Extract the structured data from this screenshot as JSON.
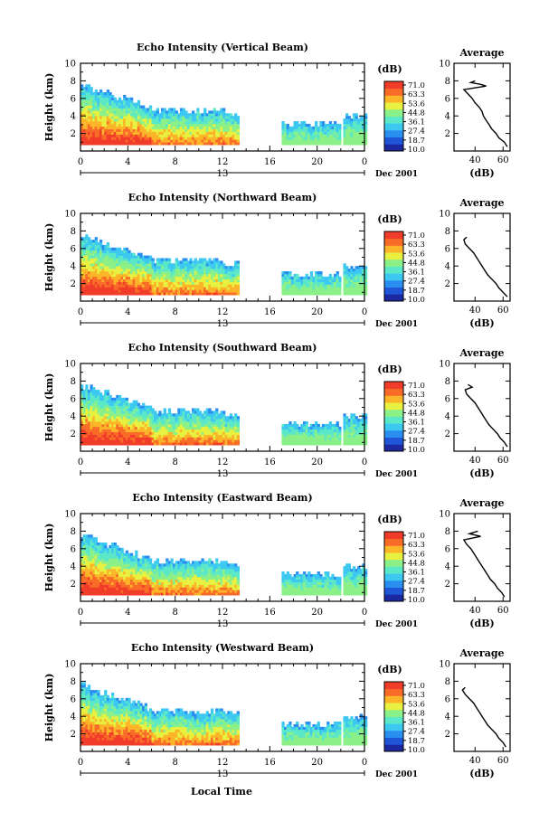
{
  "figure": {
    "bottom_label": "Local Time",
    "date_label": "Dec 2001",
    "day_marker": "13"
  },
  "colorbar": {
    "unit": "(dB)",
    "labels": [
      "71.0",
      "63.3",
      "53.6",
      "44.8",
      "36.1",
      "27.4",
      "18.7",
      "10.0"
    ],
    "colors": [
      "#1c28a0",
      "#1f56d8",
      "#2a8ef0",
      "#3cc8f0",
      "#5ae8c8",
      "#8cf088",
      "#e8f040",
      "#fcb428",
      "#f86c28",
      "#f03c28"
    ]
  },
  "chart_data": [
    {
      "type": "heatmap",
      "title": "Echo Intensity (Vertical Beam)",
      "xlabel": "",
      "ylabel": "Height (km)",
      "xlim": [
        0,
        24
      ],
      "ylim": [
        0,
        10
      ],
      "xticks": [
        "0",
        "4",
        "8",
        "12",
        "16",
        "20",
        "0"
      ],
      "yticks": [
        "2",
        "4",
        "6",
        "8",
        "10"
      ],
      "zlim": [
        10.0,
        71.0
      ],
      "profile": {
        "title": "Average",
        "xlabel": "(dB)",
        "xticks": [
          "40",
          "60"
        ],
        "yticks": [
          "2",
          "4",
          "6",
          "8",
          "10"
        ],
        "xlim": [
          25,
          65
        ],
        "ylim": [
          0,
          10
        ],
        "height_km": [
          0.5,
          1.0,
          1.5,
          2.0,
          2.5,
          3.0,
          3.5,
          4.0,
          4.5,
          5.0,
          5.5,
          6.0,
          6.5,
          7.0,
          7.4,
          7.6,
          7.8,
          8.0
        ],
        "value_db": [
          63,
          61,
          57,
          55,
          52,
          50,
          48,
          46,
          45,
          43,
          40,
          38,
          35,
          32,
          48,
          44,
          37,
          40
        ]
      }
    },
    {
      "type": "heatmap",
      "title": "Echo Intensity (Northward Beam)",
      "xlabel": "",
      "ylabel": "Height (km)",
      "xlim": [
        0,
        24
      ],
      "ylim": [
        0,
        10
      ],
      "xticks": [
        "0",
        "4",
        "8",
        "12",
        "16",
        "20",
        "0"
      ],
      "yticks": [
        "2",
        "4",
        "6",
        "8",
        "10"
      ],
      "zlim": [
        10.0,
        71.0
      ],
      "profile": {
        "title": "Average",
        "xlabel": "(dB)",
        "xticks": [
          "40",
          "60"
        ],
        "yticks": [
          "2",
          "4",
          "6",
          "8",
          "10"
        ],
        "xlim": [
          25,
          65
        ],
        "ylim": [
          0,
          10
        ],
        "height_km": [
          0.5,
          1.0,
          1.5,
          2.0,
          2.5,
          3.0,
          3.5,
          4.0,
          4.5,
          5.0,
          5.5,
          6.0,
          6.5,
          7.0,
          7.3
        ],
        "value_db": [
          63,
          60,
          57,
          55,
          52,
          49,
          47,
          45,
          43,
          41,
          39,
          36,
          33,
          32,
          34
        ]
      }
    },
    {
      "type": "heatmap",
      "title": "Echo Intensity (Southward Beam)",
      "xlabel": "",
      "ylabel": "Height (km)",
      "xlim": [
        0,
        24
      ],
      "ylim": [
        0,
        10
      ],
      "xticks": [
        "0",
        "4",
        "8",
        "12",
        "16",
        "20",
        "0"
      ],
      "yticks": [
        "2",
        "4",
        "6",
        "8",
        "10"
      ],
      "zlim": [
        10.0,
        71.0
      ],
      "profile": {
        "title": "Average",
        "xlabel": "(dB)",
        "xticks": [
          "40",
          "60"
        ],
        "yticks": [
          "2",
          "4",
          "6",
          "8",
          "10"
        ],
        "xlim": [
          25,
          65
        ],
        "ylim": [
          0,
          10
        ],
        "height_km": [
          0.5,
          1.0,
          1.5,
          2.0,
          2.5,
          3.0,
          3.5,
          4.0,
          4.5,
          5.0,
          5.5,
          6.0,
          6.5,
          7.0,
          7.3,
          7.6
        ],
        "value_db": [
          63,
          61,
          58,
          56,
          53,
          50,
          48,
          46,
          44,
          42,
          40,
          37,
          34,
          33,
          38,
          35
        ]
      }
    },
    {
      "type": "heatmap",
      "title": "Echo Intensity (Eastward Beam)",
      "xlabel": "",
      "ylabel": "Height (km)",
      "xlim": [
        0,
        24
      ],
      "ylim": [
        0,
        10
      ],
      "xticks": [
        "0",
        "4",
        "8",
        "12",
        "16",
        "20",
        "0"
      ],
      "yticks": [
        "2",
        "4",
        "6",
        "8",
        "10"
      ],
      "zlim": [
        10.0,
        71.0
      ],
      "profile": {
        "title": "Average",
        "xlabel": "(dB)",
        "xticks": [
          "40",
          "60"
        ],
        "yticks": [
          "2",
          "4",
          "6",
          "8",
          "10"
        ],
        "xlim": [
          25,
          65
        ],
        "ylim": [
          0,
          10
        ],
        "height_km": [
          0.5,
          1.0,
          1.5,
          2.0,
          2.5,
          3.0,
          3.5,
          4.0,
          4.5,
          5.0,
          5.5,
          6.0,
          6.5,
          7.0,
          7.4,
          7.7,
          8.0
        ],
        "value_db": [
          61,
          59,
          56,
          54,
          51,
          49,
          47,
          45,
          43,
          41,
          39,
          37,
          34,
          32,
          44,
          36,
          42
        ]
      }
    },
    {
      "type": "heatmap",
      "title": "Echo Intensity (Westward Beam)",
      "xlabel": "",
      "ylabel": "Height (km)",
      "xlim": [
        0,
        24
      ],
      "ylim": [
        0,
        10
      ],
      "xticks": [
        "0",
        "4",
        "8",
        "12",
        "16",
        "20",
        "0"
      ],
      "yticks": [
        "2",
        "4",
        "6",
        "8",
        "10"
      ],
      "zlim": [
        10.0,
        71.0
      ],
      "profile": {
        "title": "Average",
        "xlabel": "(dB)",
        "xticks": [
          "40",
          "60"
        ],
        "yticks": [
          "2",
          "4",
          "6",
          "8",
          "10"
        ],
        "xlim": [
          25,
          65
        ],
        "ylim": [
          0,
          10
        ],
        "height_km": [
          0.5,
          1.0,
          1.5,
          2.0,
          2.5,
          3.0,
          3.5,
          4.0,
          4.5,
          5.0,
          5.5,
          6.0,
          6.5,
          7.0,
          7.3
        ],
        "value_db": [
          62,
          60,
          57,
          55,
          52,
          49,
          47,
          45,
          43,
          41,
          39,
          36,
          33,
          31,
          33
        ]
      }
    }
  ]
}
